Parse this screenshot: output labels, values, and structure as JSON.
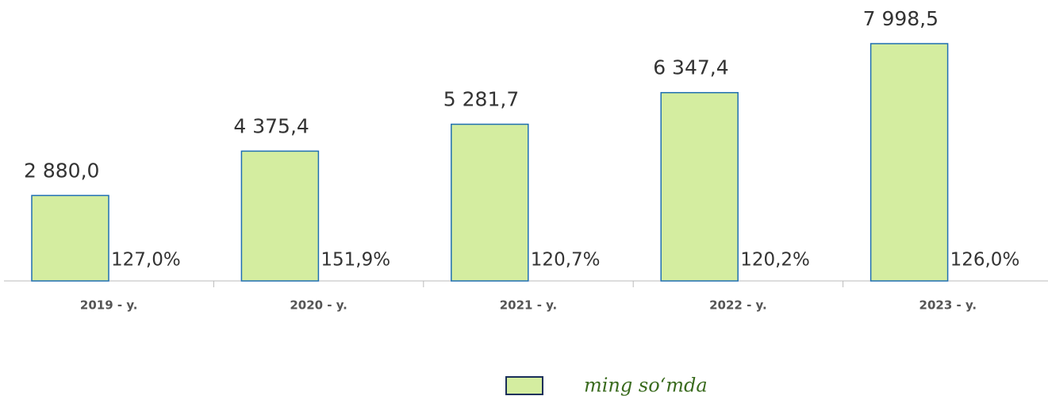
{
  "chart_data": {
    "type": "bar",
    "categories": [
      "2019 - y.",
      "2020 - y.",
      "2021 - y.",
      "2022 - y.",
      "2023 - y."
    ],
    "values": [
      2880.0,
      4375.4,
      5281.7,
      6347.4,
      7998.5
    ],
    "value_labels": [
      "2 880,0",
      "4 375,4",
      "5 281,7",
      "6 347,4",
      "7 998,5"
    ],
    "annotations": [
      "127,0%",
      "151,9%",
      "120,7%",
      "120,2%",
      "126,0%"
    ],
    "series_name": "ming so‘mda",
    "color": "#d4eda0",
    "edge_color": "#1f6fb2"
  }
}
